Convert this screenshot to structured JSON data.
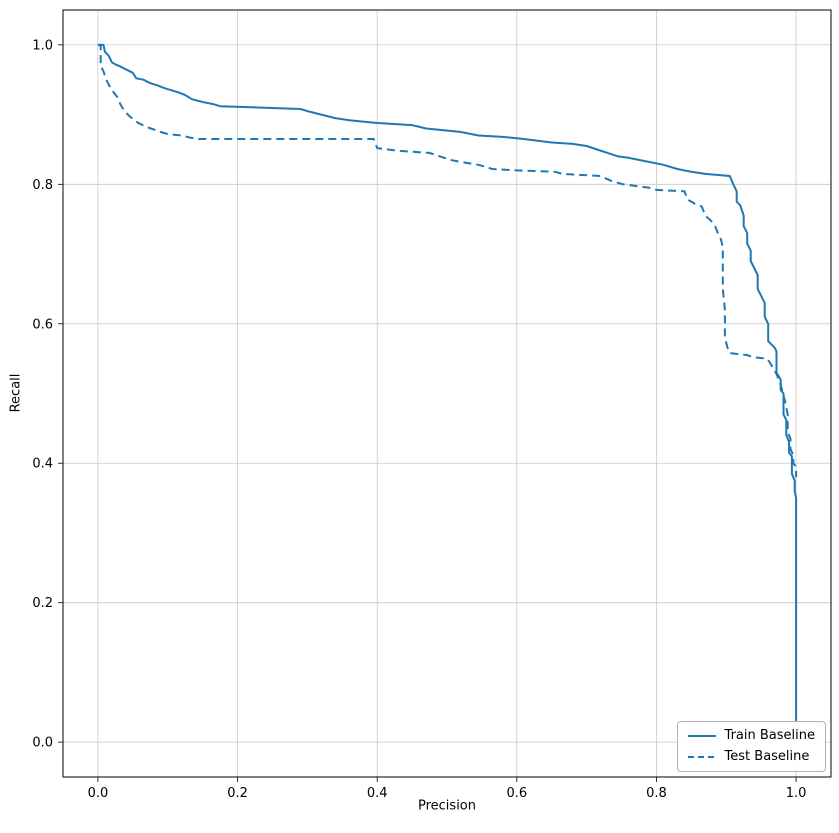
{
  "chart_data": {
    "type": "line",
    "title": "",
    "xlabel": "Precision",
    "ylabel": "Recall",
    "xlim": [
      -0.05,
      1.05
    ],
    "ylim": [
      -0.05,
      1.05
    ],
    "xticks": [
      0.0,
      0.2,
      0.4,
      0.6,
      0.8,
      1.0
    ],
    "yticks": [
      0.0,
      0.2,
      0.4,
      0.6,
      0.8,
      1.0
    ],
    "grid": true,
    "legend_position": "lower right",
    "line_color": "#1f77b4",
    "series": [
      {
        "name": "Train Baseline",
        "style": "solid",
        "points": [
          [
            0.0,
            1.0
          ],
          [
            0.008,
            1.0
          ],
          [
            0.01,
            0.99
          ],
          [
            0.015,
            0.985
          ],
          [
            0.02,
            0.975
          ],
          [
            0.025,
            0.972
          ],
          [
            0.03,
            0.97
          ],
          [
            0.04,
            0.965
          ],
          [
            0.05,
            0.96
          ],
          [
            0.055,
            0.952
          ],
          [
            0.065,
            0.95
          ],
          [
            0.075,
            0.945
          ],
          [
            0.085,
            0.942
          ],
          [
            0.095,
            0.938
          ],
          [
            0.105,
            0.935
          ],
          [
            0.115,
            0.932
          ],
          [
            0.125,
            0.928
          ],
          [
            0.135,
            0.922
          ],
          [
            0.15,
            0.918
          ],
          [
            0.165,
            0.915
          ],
          [
            0.175,
            0.912
          ],
          [
            0.29,
            0.908
          ],
          [
            0.3,
            0.905
          ],
          [
            0.32,
            0.9
          ],
          [
            0.34,
            0.895
          ],
          [
            0.36,
            0.892
          ],
          [
            0.4,
            0.888
          ],
          [
            0.45,
            0.885
          ],
          [
            0.47,
            0.88
          ],
          [
            0.52,
            0.875
          ],
          [
            0.545,
            0.87
          ],
          [
            0.58,
            0.868
          ],
          [
            0.61,
            0.865
          ],
          [
            0.65,
            0.86
          ],
          [
            0.68,
            0.858
          ],
          [
            0.7,
            0.855
          ],
          [
            0.715,
            0.85
          ],
          [
            0.73,
            0.845
          ],
          [
            0.745,
            0.84
          ],
          [
            0.76,
            0.838
          ],
          [
            0.79,
            0.832
          ],
          [
            0.81,
            0.828
          ],
          [
            0.83,
            0.822
          ],
          [
            0.85,
            0.818
          ],
          [
            0.87,
            0.815
          ],
          [
            0.905,
            0.812
          ],
          [
            0.91,
            0.8
          ],
          [
            0.915,
            0.79
          ],
          [
            0.915,
            0.775
          ],
          [
            0.92,
            0.77
          ],
          [
            0.925,
            0.755
          ],
          [
            0.925,
            0.74
          ],
          [
            0.93,
            0.73
          ],
          [
            0.93,
            0.715
          ],
          [
            0.935,
            0.705
          ],
          [
            0.935,
            0.69
          ],
          [
            0.94,
            0.68
          ],
          [
            0.945,
            0.67
          ],
          [
            0.945,
            0.65
          ],
          [
            0.95,
            0.64
          ],
          [
            0.955,
            0.63
          ],
          [
            0.955,
            0.61
          ],
          [
            0.96,
            0.6
          ],
          [
            0.96,
            0.575
          ],
          [
            0.965,
            0.57
          ],
          [
            0.97,
            0.565
          ],
          [
            0.972,
            0.56
          ],
          [
            0.972,
            0.53
          ],
          [
            0.975,
            0.525
          ],
          [
            0.978,
            0.52
          ],
          [
            0.978,
            0.505
          ],
          [
            0.982,
            0.5
          ],
          [
            0.982,
            0.47
          ],
          [
            0.986,
            0.462
          ],
          [
            0.986,
            0.44
          ],
          [
            0.99,
            0.43
          ],
          [
            0.99,
            0.415
          ],
          [
            0.994,
            0.41
          ],
          [
            0.994,
            0.385
          ],
          [
            0.998,
            0.375
          ],
          [
            0.998,
            0.36
          ],
          [
            1.0,
            0.35
          ],
          [
            1.0,
            0.03
          ]
        ]
      },
      {
        "name": "Test Baseline",
        "style": "dashed",
        "points": [
          [
            0.0,
            1.0
          ],
          [
            0.004,
            1.0
          ],
          [
            0.004,
            0.97
          ],
          [
            0.008,
            0.962
          ],
          [
            0.012,
            0.95
          ],
          [
            0.016,
            0.942
          ],
          [
            0.02,
            0.935
          ],
          [
            0.028,
            0.925
          ],
          [
            0.032,
            0.915
          ],
          [
            0.038,
            0.905
          ],
          [
            0.045,
            0.898
          ],
          [
            0.052,
            0.892
          ],
          [
            0.058,
            0.888
          ],
          [
            0.07,
            0.882
          ],
          [
            0.082,
            0.878
          ],
          [
            0.09,
            0.875
          ],
          [
            0.1,
            0.872
          ],
          [
            0.12,
            0.87
          ],
          [
            0.132,
            0.867
          ],
          [
            0.145,
            0.865
          ],
          [
            0.395,
            0.865
          ],
          [
            0.4,
            0.852
          ],
          [
            0.43,
            0.848
          ],
          [
            0.475,
            0.845
          ],
          [
            0.49,
            0.84
          ],
          [
            0.505,
            0.835
          ],
          [
            0.52,
            0.832
          ],
          [
            0.545,
            0.828
          ],
          [
            0.565,
            0.822
          ],
          [
            0.6,
            0.82
          ],
          [
            0.655,
            0.818
          ],
          [
            0.665,
            0.815
          ],
          [
            0.72,
            0.812
          ],
          [
            0.735,
            0.805
          ],
          [
            0.752,
            0.8
          ],
          [
            0.79,
            0.795
          ],
          [
            0.8,
            0.792
          ],
          [
            0.84,
            0.79
          ],
          [
            0.845,
            0.778
          ],
          [
            0.855,
            0.772
          ],
          [
            0.865,
            0.768
          ],
          [
            0.87,
            0.755
          ],
          [
            0.878,
            0.748
          ],
          [
            0.884,
            0.74
          ],
          [
            0.888,
            0.73
          ],
          [
            0.892,
            0.722
          ],
          [
            0.895,
            0.71
          ],
          [
            0.895,
            0.65
          ],
          [
            0.898,
            0.62
          ],
          [
            0.898,
            0.58
          ],
          [
            0.902,
            0.565
          ],
          [
            0.905,
            0.558
          ],
          [
            0.93,
            0.555
          ],
          [
            0.938,
            0.552
          ],
          [
            0.958,
            0.55
          ],
          [
            0.962,
            0.545
          ],
          [
            0.968,
            0.535
          ],
          [
            0.972,
            0.528
          ],
          [
            0.975,
            0.52
          ],
          [
            0.978,
            0.512
          ],
          [
            0.98,
            0.505
          ],
          [
            0.984,
            0.49
          ],
          [
            0.988,
            0.47
          ],
          [
            0.988,
            0.445
          ],
          [
            0.992,
            0.435
          ],
          [
            0.992,
            0.42
          ],
          [
            0.996,
            0.412
          ],
          [
            0.996,
            0.4
          ],
          [
            1.0,
            0.395
          ],
          [
            1.0,
            0.38
          ]
        ]
      }
    ]
  }
}
